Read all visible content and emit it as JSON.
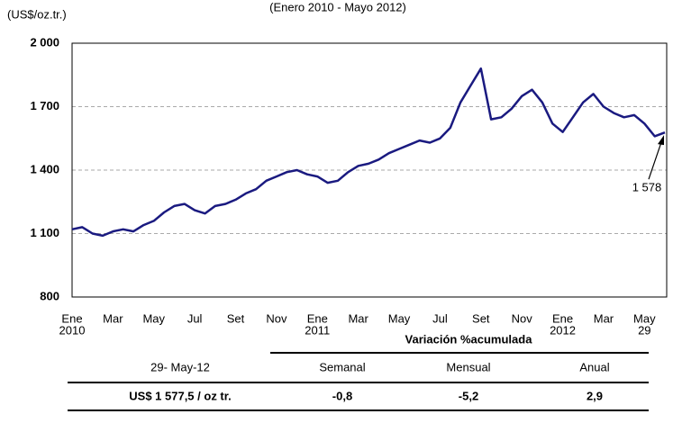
{
  "chart_data": {
    "type": "line",
    "subtitle": "(Enero 2010 - Mayo 2012)",
    "y_label": "(US$/oz.tr.)",
    "annotation": "1 578",
    "color": "#1a1a80",
    "categories": [
      "Ene",
      null,
      null,
      null,
      "Mar",
      null,
      null,
      null,
      "May",
      null,
      null,
      null,
      "Jul",
      null,
      null,
      null,
      "Set",
      null,
      null,
      null,
      "Nov",
      null,
      null,
      null,
      "Ene",
      null,
      null,
      null,
      "Mar",
      null,
      null,
      null,
      "May",
      null,
      null,
      null,
      "Jul",
      null,
      null,
      null,
      "Set",
      null,
      null,
      null,
      "Nov",
      null,
      null,
      null,
      "Ene",
      null,
      null,
      null,
      "Mar",
      null,
      null,
      null,
      "May",
      null,
      null
    ],
    "category_sublabels": [
      "2010",
      null,
      null,
      null,
      null,
      null,
      null,
      null,
      null,
      null,
      null,
      null,
      null,
      null,
      null,
      null,
      null,
      null,
      null,
      null,
      null,
      null,
      null,
      null,
      "2011",
      null,
      null,
      null,
      null,
      null,
      null,
      null,
      null,
      null,
      null,
      null,
      null,
      null,
      null,
      null,
      null,
      null,
      null,
      null,
      null,
      null,
      null,
      null,
      "2012",
      null,
      null,
      null,
      null,
      null,
      null,
      null,
      "29",
      null,
      null
    ],
    "values": [
      1120,
      1130,
      1100,
      1090,
      1110,
      1120,
      1110,
      1140,
      1160,
      1200,
      1230,
      1240,
      1210,
      1195,
      1230,
      1240,
      1260,
      1290,
      1310,
      1350,
      1370,
      1390,
      1400,
      1380,
      1370,
      1340,
      1350,
      1390,
      1420,
      1430,
      1450,
      1480,
      1500,
      1520,
      1540,
      1530,
      1550,
      1600,
      1720,
      1800,
      1880,
      1640,
      1650,
      1690,
      1750,
      1780,
      1720,
      1620,
      1580,
      1650,
      1720,
      1760,
      1700,
      1670,
      1650,
      1660,
      1620,
      1560,
      1578
    ],
    "ylim": [
      800,
      2000
    ],
    "yticks": [
      {
        "value": 800,
        "label": "800"
      },
      {
        "value": 1100,
        "label": "1 100"
      },
      {
        "value": 1400,
        "label": "1 400"
      },
      {
        "value": 1700,
        "label": "1 700"
      },
      {
        "value": 2000,
        "label": "2 000"
      }
    ],
    "grid": true
  },
  "table": {
    "group_header": "Variación %acumulada",
    "header": [
      "29- May-12",
      "Semanal",
      "Mensual",
      "Anual"
    ],
    "rows": [
      [
        "US$ 1 577,5 / oz tr.",
        "-0,8",
        "-5,2",
        "2,9"
      ]
    ]
  }
}
